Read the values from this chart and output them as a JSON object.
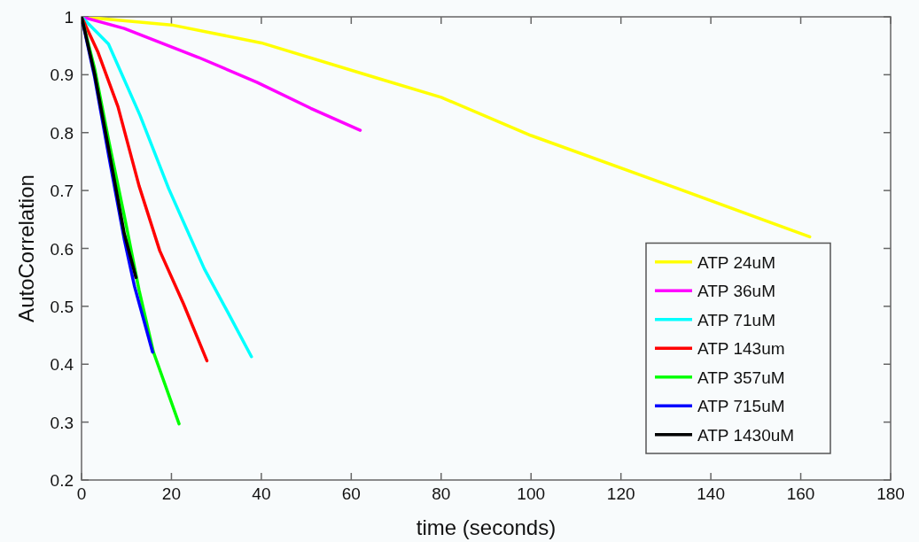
{
  "chart_data": {
    "type": "line",
    "xlabel": "time (seconds)",
    "ylabel": "AutoCorrelation",
    "xlim": [
      0,
      180
    ],
    "xticks": [
      0,
      20,
      40,
      60,
      80,
      100,
      120,
      140,
      160,
      180
    ],
    "ylim": [
      0.2,
      1
    ],
    "yticks": [
      0.2,
      0.3,
      0.4,
      0.5,
      0.6,
      0.7,
      0.8,
      0.9,
      1
    ],
    "grid": false,
    "legend": "bottom right",
    "line_style": "solid",
    "series": [
      {
        "name": "ATP 24uM",
        "color": "#ffff00",
        "x": [
          0,
          20,
          40,
          65,
          80,
          100,
          131,
          162
        ],
        "values": [
          1,
          0.986,
          0.955,
          0.896,
          0.861,
          0.795,
          0.708,
          0.62
        ]
      },
      {
        "name": "ATP 36uM",
        "color": "#ff00ff",
        "x": [
          0,
          9.5,
          26,
          39,
          51,
          62
        ],
        "values": [
          1,
          0.98,
          0.93,
          0.887,
          0.842,
          0.804
        ]
      },
      {
        "name": "ATP 71uM",
        "color": "#00ffff",
        "x": [
          0,
          6,
          13,
          19.4,
          27.3,
          32.6,
          37.8
        ],
        "values": [
          1,
          0.953,
          0.83,
          0.703,
          0.565,
          0.489,
          0.413
        ]
      },
      {
        "name": "ATP 143um",
        "color": "#ff0000",
        "x": [
          0,
          3.6,
          8.1,
          12.8,
          17.4,
          22.7,
          27.9
        ],
        "values": [
          1,
          0.94,
          0.845,
          0.708,
          0.596,
          0.504,
          0.406
        ]
      },
      {
        "name": "ATP 357uM",
        "color": "#00ff00",
        "x": [
          0,
          2.9,
          6.1,
          9.5,
          12.8,
          16,
          21.7
        ],
        "values": [
          1,
          0.911,
          0.784,
          0.657,
          0.528,
          0.421,
          0.297
        ]
      },
      {
        "name": "ATP 715uM",
        "color": "#0000ff",
        "x": [
          0,
          2.9,
          6.1,
          9.5,
          11.8,
          15.8
        ],
        "values": [
          1,
          0.896,
          0.758,
          0.616,
          0.534,
          0.421
        ]
      },
      {
        "name": "ATP 1430uM",
        "color": "#000000",
        "x": [
          0,
          2.9,
          6.1,
          9.5,
          12.1
        ],
        "values": [
          1,
          0.902,
          0.769,
          0.626,
          0.55
        ]
      }
    ]
  }
}
